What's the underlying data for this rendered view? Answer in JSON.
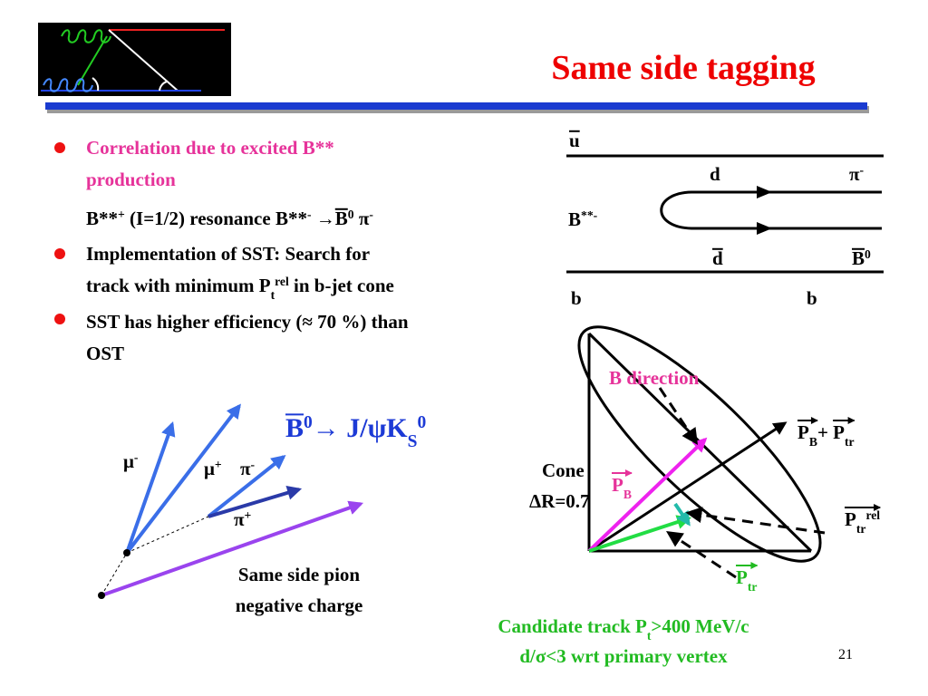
{
  "header": {
    "title": "Same side tagging"
  },
  "bullets": [
    {
      "lines": [
        [
          {
            "text": "Correlation due to excited B**"
          }
        ],
        [
          {
            "text": "production"
          }
        ]
      ],
      "detail": [
        {
          "text": "B**",
          "sup": "+"
        },
        {
          "text": " (I=1/2) resonance B**",
          "sup": "-"
        },
        {
          "text": " →"
        },
        {
          "text": "B",
          "over": true,
          "sup": "0"
        },
        {
          "text": " π",
          "sup": "-"
        }
      ]
    },
    {
      "lines": [
        [
          {
            "text": "Implementation of SST: Search for"
          }
        ],
        [
          {
            "text": "track with minimum P",
            "sub": "t",
            "sup": "rel"
          },
          {
            "text": " in b-jet cone"
          }
        ]
      ]
    },
    {
      "lines": [
        [
          {
            "text": "SST has higher efficiency (≈ 70 %) than"
          }
        ],
        [
          {
            "text": "OST"
          }
        ]
      ]
    }
  ],
  "quark": {
    "u_bar": [
      {
        "text": "u",
        "over": true
      }
    ],
    "d": [
      {
        "text": "d"
      }
    ],
    "pi": [
      {
        "text": "π",
        "sup": "-"
      }
    ],
    "b_star": [
      {
        "text": "B",
        "sup": "**-"
      }
    ],
    "d_bar": [
      {
        "text": "d",
        "over": true
      }
    ],
    "b0_bar": [
      {
        "text": "B",
        "over": true,
        "sup": "0"
      }
    ],
    "b_left": [
      {
        "text": "b"
      }
    ],
    "b_right": [
      {
        "text": "b"
      }
    ]
  },
  "cone": {
    "b_direction": [
      {
        "text": "B direction"
      }
    ],
    "sum": [
      {
        "text": "P",
        "sub": "B",
        "arrow": true
      },
      {
        "text": "+ "
      },
      {
        "text": "P",
        "sub": "tr",
        "arrow": true
      }
    ],
    "cone": [
      {
        "text": "Cone"
      }
    ],
    "delta_r": [
      {
        "text": "ΔR=0.7"
      }
    ],
    "p_b": [
      {
        "text": "P",
        "sub": "B",
        "arrow": true
      }
    ],
    "p_tr_rel": [
      {
        "text": "P",
        "sub": "tr",
        "sup": "rel",
        "arrow": true
      }
    ],
    "p_tr": [
      {
        "text": "P",
        "sub": "tr",
        "arrow": true
      }
    ]
  },
  "decay": {
    "title": [
      {
        "text": "B",
        "over": true,
        "sup": "0"
      },
      {
        "text": "→ J/ψK",
        "sup": "0",
        "sub": "S"
      }
    ],
    "mu_minus": [
      {
        "text": "μ",
        "sup": "-"
      }
    ],
    "mu_plus": [
      {
        "text": "μ",
        "sup": "+"
      }
    ],
    "pi_minus": [
      {
        "text": "π",
        "sup": "-"
      }
    ],
    "pi_plus": [
      {
        "text": "π",
        "sup": "+"
      }
    ],
    "caption": [
      [
        {
          "text": "Same side pion"
        }
      ],
      [
        {
          "text": "negative charge"
        }
      ]
    ]
  },
  "footer": {
    "cuts": [
      [
        {
          "text": "Candidate track P",
          "sub": "t"
        },
        {
          "text": ">400 MeV/c"
        }
      ],
      [
        {
          "text": "d/σ<3 wrt primary vertex"
        }
      ]
    ],
    "page": "21"
  }
}
